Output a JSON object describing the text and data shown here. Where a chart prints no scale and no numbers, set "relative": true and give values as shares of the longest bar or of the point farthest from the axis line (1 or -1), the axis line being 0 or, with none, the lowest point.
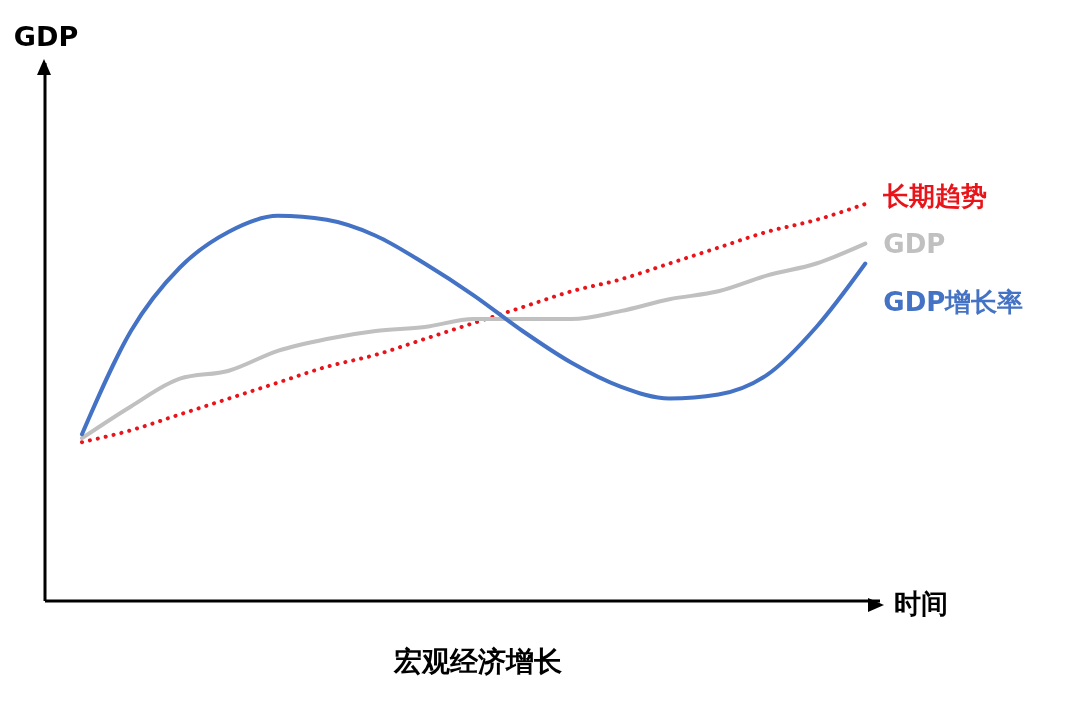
{
  "chart_data": {
    "type": "line",
    "title": "宏观经济增长",
    "xlabel": "时间",
    "annotations": [
      "GDP"
    ],
    "relative": true,
    "grid": false,
    "legend": false,
    "marker": "none",
    "categories": [
      null,
      null,
      null,
      null,
      null,
      null,
      null,
      null,
      null,
      null,
      null,
      null,
      null,
      null,
      null,
      null,
      null
    ],
    "series": [
      {
        "name": "长期趋势",
        "color": "#e8141a",
        "line_style": "dotted",
        "values": [
          0.4,
          0.43,
          0.47,
          0.51,
          0.55,
          0.59,
          0.62,
          0.66,
          0.7,
          0.74,
          0.78,
          0.81,
          0.85,
          0.89,
          0.93,
          0.96,
          1.0
        ]
      },
      {
        "name": "GDP",
        "color": "#c0c0c0",
        "line_style": "solid",
        "values": [
          0.41,
          0.49,
          0.56,
          0.58,
          0.63,
          0.66,
          0.68,
          0.69,
          0.71,
          0.71,
          0.71,
          0.73,
          0.76,
          0.78,
          0.82,
          0.85,
          0.9
        ]
      },
      {
        "name": "GDP增长率",
        "color": "#4472c4",
        "line_style": "solid",
        "values": [
          0.42,
          0.68,
          0.84,
          0.93,
          0.97,
          0.96,
          0.92,
          0.85,
          0.77,
          0.68,
          0.6,
          0.54,
          0.51,
          0.52,
          0.57,
          0.69,
          0.85
        ]
      }
    ]
  }
}
